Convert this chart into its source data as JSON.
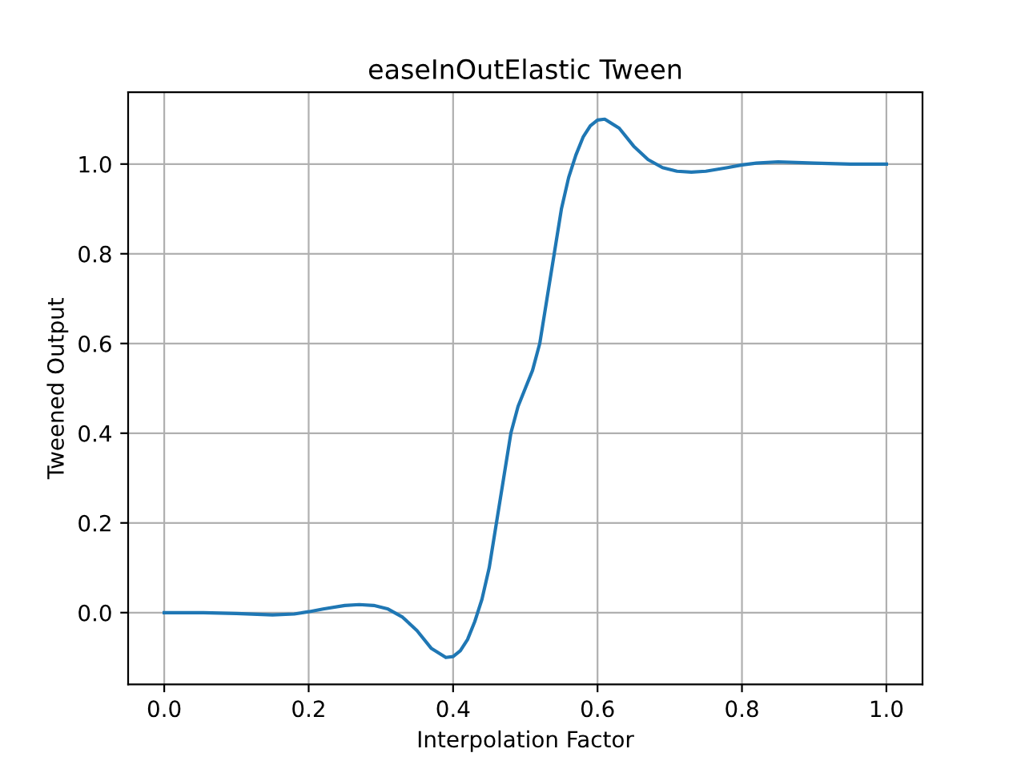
{
  "chart_data": {
    "type": "line",
    "title": "easeInOutElastic Tween",
    "xlabel": "Interpolation Factor",
    "ylabel": "Tweened Output",
    "x": [
      0,
      0.05,
      0.1,
      0.15,
      0.18,
      0.2,
      0.22,
      0.25,
      0.27,
      0.29,
      0.31,
      0.33,
      0.35,
      0.37,
      0.39,
      0.4,
      0.41,
      0.42,
      0.43,
      0.44,
      0.45,
      0.46,
      0.47,
      0.48,
      0.49,
      0.5,
      0.51,
      0.52,
      0.53,
      0.54,
      0.55,
      0.56,
      0.57,
      0.58,
      0.59,
      0.6,
      0.61,
      0.63,
      0.65,
      0.67,
      0.69,
      0.71,
      0.73,
      0.75,
      0.78,
      0.8,
      0.82,
      0.85,
      0.9,
      0.95,
      1.0
    ],
    "series": [
      {
        "color": "#1f77b4",
        "values": [
          0,
          0.0,
          -0.002,
          -0.005,
          -0.003,
          0.002,
          0.008,
          0.016,
          0.018,
          0.016,
          0.008,
          -0.01,
          -0.04,
          -0.08,
          -0.1,
          -0.098,
          -0.085,
          -0.06,
          -0.02,
          0.03,
          0.1,
          0.2,
          0.3,
          0.4,
          0.46,
          0.5,
          0.54,
          0.6,
          0.7,
          0.8,
          0.9,
          0.97,
          1.02,
          1.06,
          1.085,
          1.098,
          1.1,
          1.08,
          1.04,
          1.01,
          0.992,
          0.984,
          0.982,
          0.984,
          0.992,
          0.998,
          1.002,
          1.005,
          1.002,
          1.0,
          1.0
        ]
      }
    ],
    "xlim": [
      -0.05,
      1.05
    ],
    "ylim": [
      -0.16,
      1.16
    ],
    "xticks": [
      {
        "value": 0,
        "label": "0.0"
      },
      {
        "value": 0.2,
        "label": "0.2"
      },
      {
        "value": 0.4,
        "label": "0.4"
      },
      {
        "value": 0.6,
        "label": "0.6"
      },
      {
        "value": 0.8,
        "label": "0.8"
      },
      {
        "value": 1,
        "label": "1.0"
      }
    ],
    "yticks": [
      {
        "value": 0,
        "label": "0.0"
      },
      {
        "value": 0.2,
        "label": "0.2"
      },
      {
        "value": 0.4,
        "label": "0.4"
      },
      {
        "value": 0.6,
        "label": "0.6"
      },
      {
        "value": 0.8,
        "label": "0.8"
      },
      {
        "value": 1,
        "label": "1.0"
      }
    ],
    "grid": true
  }
}
